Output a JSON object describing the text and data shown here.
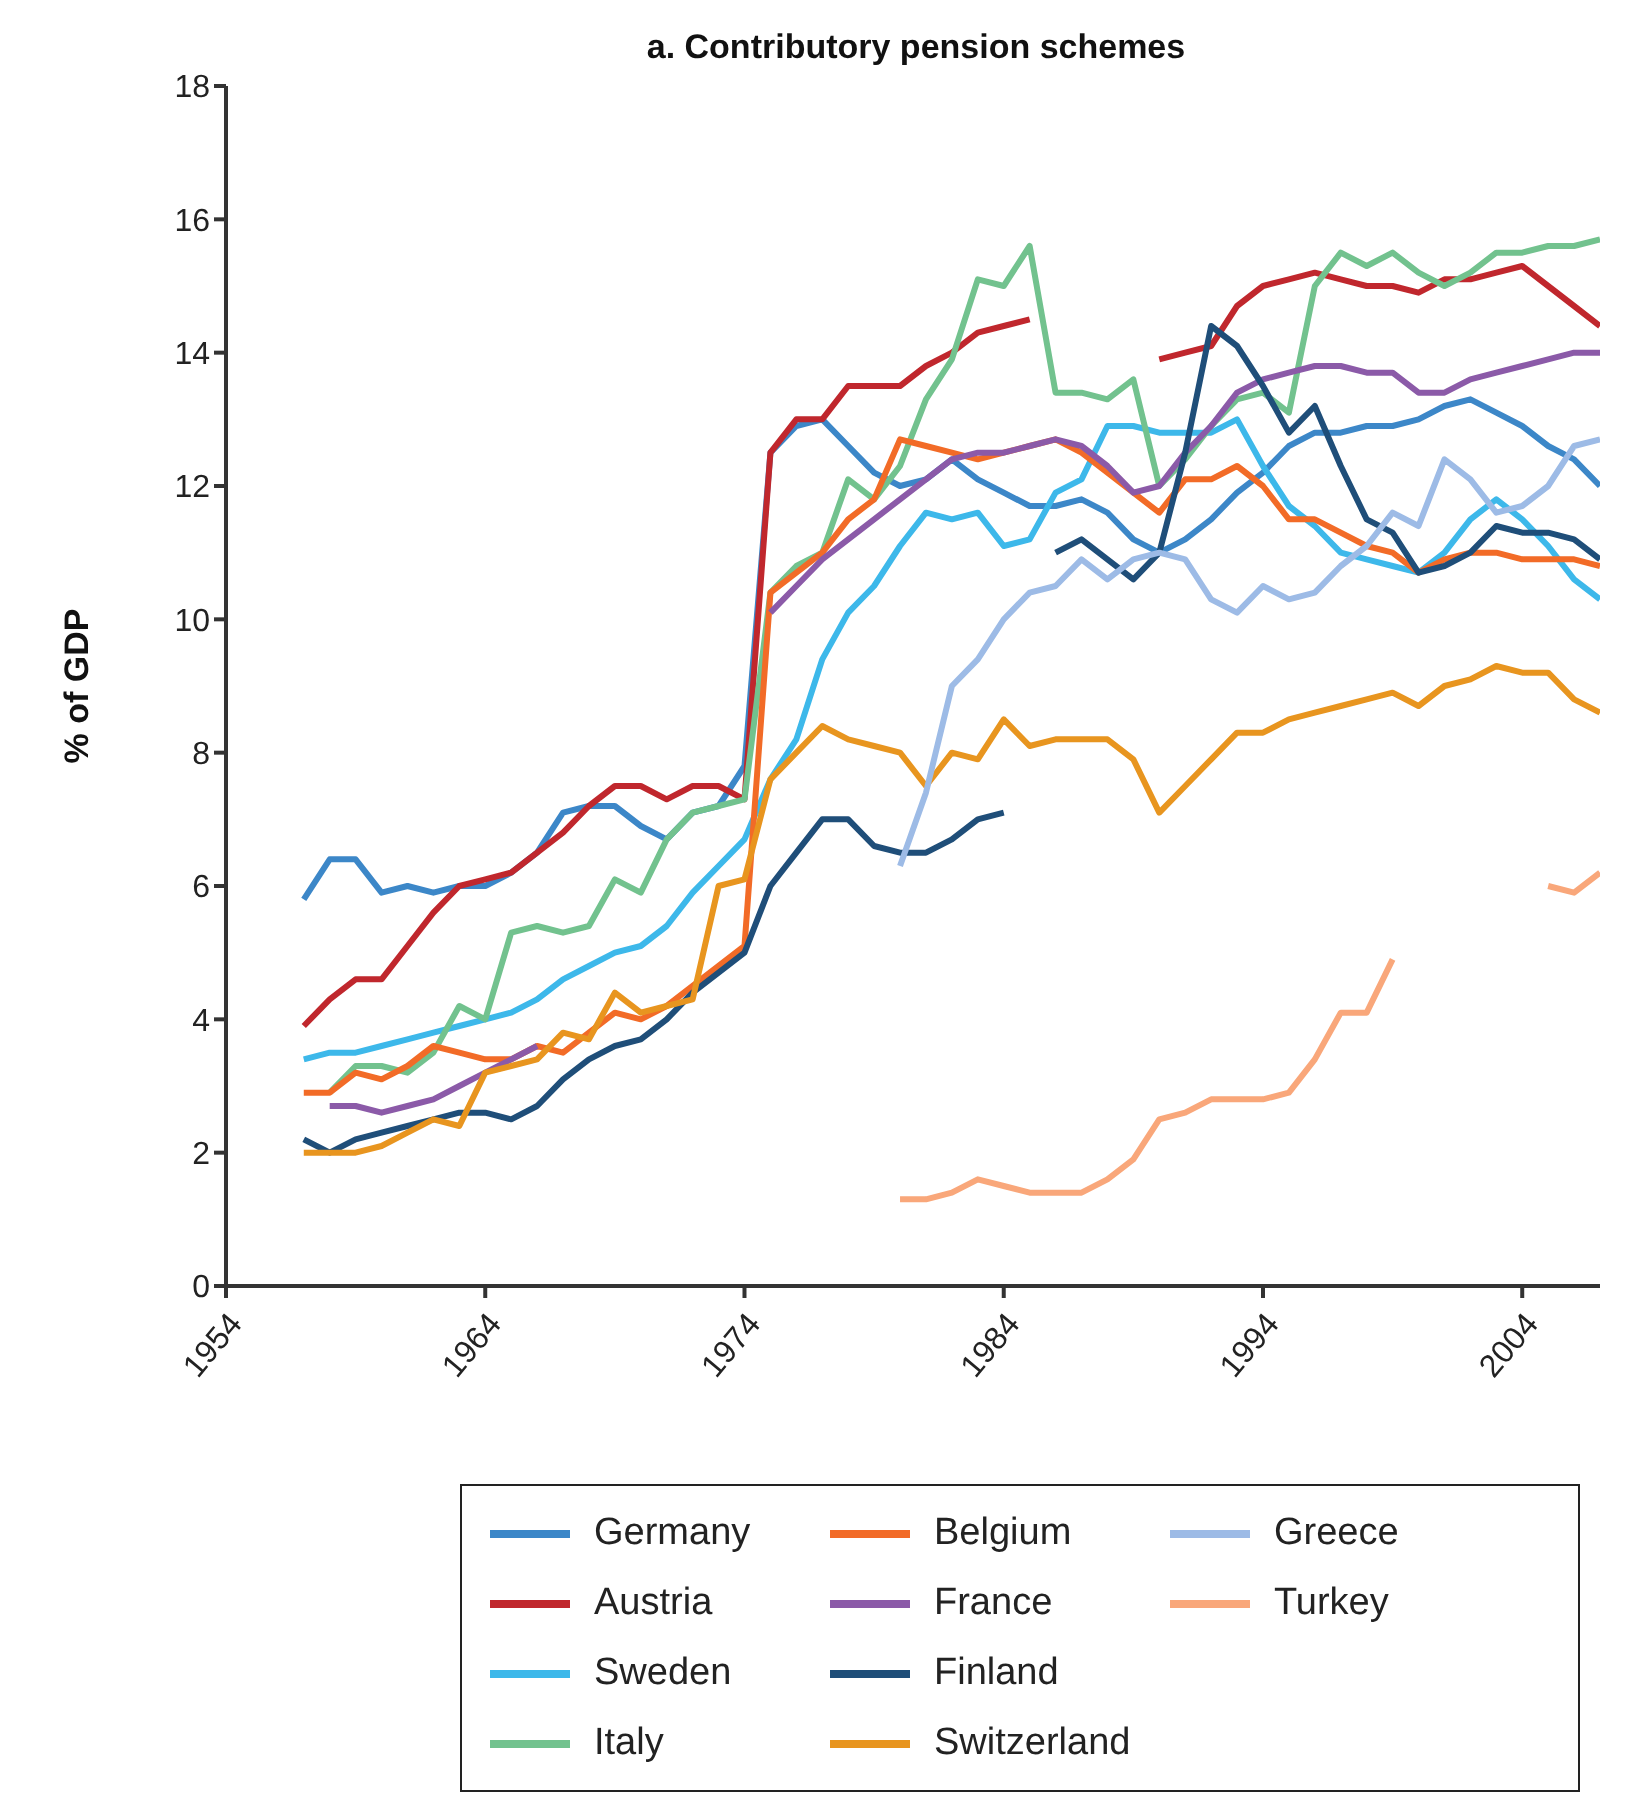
{
  "chart_data": {
    "type": "line",
    "title": "a. Contributory pension schemes",
    "ylabel": "% of GDP",
    "xlim": [
      1954,
      2007
    ],
    "xticks": [
      1954,
      1964,
      1974,
      1984,
      1994,
      2004
    ],
    "ylim": [
      0,
      18
    ],
    "yticks": [
      0,
      2,
      4,
      6,
      8,
      10,
      12,
      14,
      16,
      18
    ],
    "grid": false,
    "legend": "bottom",
    "marker": "none",
    "line_style": "solid",
    "series": [
      {
        "name": "Germany",
        "color": "#3c87c8",
        "x": [
          1957,
          1958,
          1959,
          1960,
          1961,
          1962,
          1963,
          1964,
          1965,
          1966,
          1967,
          1968,
          1969,
          1970,
          1971,
          1972,
          1973,
          1974,
          1975,
          1976,
          1977,
          1978,
          1979,
          1980,
          1981,
          1982,
          1983,
          1984,
          1985,
          1986,
          1987,
          1988,
          1989,
          1990,
          1991,
          1992,
          1993,
          1994,
          1995,
          1996,
          1997,
          1998,
          1999,
          2000,
          2001,
          2002,
          2003,
          2004,
          2005,
          2006,
          2007
        ],
        "values": [
          5.8,
          6.4,
          6.4,
          5.9,
          6.0,
          5.9,
          6.0,
          6.0,
          6.2,
          6.5,
          7.1,
          7.2,
          7.2,
          6.9,
          6.7,
          7.1,
          7.2,
          7.8,
          12.5,
          12.9,
          13.0,
          12.6,
          12.2,
          12.0,
          12.1,
          12.4,
          12.1,
          11.9,
          11.7,
          11.7,
          11.8,
          11.6,
          11.2,
          11.0,
          11.2,
          11.5,
          11.9,
          12.2,
          12.6,
          12.8,
          12.8,
          12.9,
          12.9,
          13.0,
          13.2,
          13.3,
          13.1,
          12.9,
          12.6,
          12.4,
          12.0
        ]
      },
      {
        "name": "Austria",
        "color": "#c0272d",
        "x": [
          1957,
          1958,
          1959,
          1960,
          1961,
          1962,
          1963,
          1964,
          1965,
          1966,
          1967,
          1968,
          1969,
          1970,
          1971,
          1972,
          1973,
          1974,
          1975,
          1976,
          1977,
          1978,
          1979,
          1980,
          1981,
          1982,
          1983,
          1984,
          1985,
          1987,
          1990,
          1991,
          1992,
          1993,
          1994,
          1995,
          1996,
          1997,
          1998,
          1999,
          2000,
          2001,
          2002,
          2003,
          2004,
          2005,
          2006,
          2007
        ],
        "values": [
          3.9,
          4.3,
          4.6,
          4.6,
          5.1,
          5.6,
          6.0,
          6.1,
          6.2,
          6.5,
          6.8,
          7.2,
          7.5,
          7.5,
          7.3,
          7.5,
          7.5,
          7.3,
          12.5,
          13.0,
          13.0,
          13.5,
          13.5,
          13.5,
          13.8,
          14.0,
          14.3,
          14.4,
          14.5,
          null,
          13.9,
          14.0,
          14.1,
          14.7,
          15.0,
          15.1,
          15.2,
          15.1,
          15.0,
          15.0,
          14.9,
          15.1,
          15.1,
          15.2,
          15.3,
          15.0,
          14.7,
          14.4
        ]
      },
      {
        "name": "Sweden",
        "color": "#3db8ea",
        "x": [
          1957,
          1958,
          1959,
          1960,
          1961,
          1962,
          1963,
          1964,
          1965,
          1966,
          1967,
          1968,
          1969,
          1970,
          1971,
          1972,
          1973,
          1974,
          1975,
          1976,
          1977,
          1978,
          1979,
          1980,
          1981,
          1982,
          1983,
          1984,
          1985,
          1986,
          1987,
          1988,
          1989,
          1990,
          1991,
          1992,
          1993,
          1994,
          1995,
          1996,
          1997,
          1998,
          1999,
          2000,
          2001,
          2002,
          2003,
          2004,
          2005,
          2006,
          2007
        ],
        "values": [
          3.4,
          3.5,
          3.5,
          3.6,
          3.7,
          3.8,
          3.9,
          4.0,
          4.1,
          4.3,
          4.6,
          4.8,
          5.0,
          5.1,
          5.4,
          5.9,
          6.3,
          6.7,
          7.6,
          8.2,
          9.4,
          10.1,
          10.5,
          11.1,
          11.6,
          11.5,
          11.6,
          11.1,
          11.2,
          11.9,
          12.1,
          12.9,
          12.9,
          12.8,
          12.8,
          12.8,
          13.0,
          12.3,
          11.7,
          11.4,
          11.0,
          10.9,
          10.8,
          10.7,
          11.0,
          11.5,
          11.8,
          11.5,
          11.1,
          10.6,
          10.3
        ]
      },
      {
        "name": "Italy",
        "color": "#72c28e",
        "x": [
          1958,
          1959,
          1960,
          1961,
          1962,
          1963,
          1964,
          1965,
          1966,
          1967,
          1968,
          1969,
          1970,
          1971,
          1972,
          1973,
          1974,
          1975,
          1976,
          1977,
          1978,
          1979,
          1980,
          1981,
          1982,
          1983,
          1984,
          1985,
          1986,
          1987,
          1988,
          1989,
          1990,
          1991,
          1992,
          1993,
          1994,
          1995,
          1996,
          1997,
          1998,
          1999,
          2000,
          2001,
          2002,
          2003,
          2004,
          2005,
          2006,
          2007
        ],
        "values": [
          2.9,
          3.3,
          3.3,
          3.2,
          3.5,
          4.2,
          4.0,
          5.3,
          5.4,
          5.3,
          5.4,
          6.1,
          5.9,
          6.7,
          7.1,
          7.2,
          7.3,
          10.4,
          10.8,
          11.0,
          12.1,
          11.8,
          12.3,
          13.3,
          13.9,
          15.1,
          15.0,
          15.6,
          13.4,
          13.4,
          13.3,
          13.6,
          12.0,
          12.4,
          12.9,
          13.3,
          13.4,
          13.1,
          15.0,
          15.5,
          15.3,
          15.5,
          15.2,
          15.0,
          15.2,
          15.5,
          15.5,
          15.6,
          15.6,
          15.7
        ]
      },
      {
        "name": "Belgium",
        "color": "#f26b27",
        "x": [
          1957,
          1958,
          1959,
          1960,
          1961,
          1962,
          1963,
          1964,
          1965,
          1966,
          1967,
          1968,
          1969,
          1970,
          1971,
          1972,
          1973,
          1974,
          1975,
          1976,
          1977,
          1978,
          1979,
          1980,
          1981,
          1982,
          1983,
          1984,
          1985,
          1986,
          1987,
          1988,
          1989,
          1990,
          1991,
          1992,
          1993,
          1994,
          1995,
          1996,
          1997,
          1998,
          1999,
          2000,
          2001,
          2002,
          2003,
          2004,
          2005,
          2006,
          2007
        ],
        "values": [
          2.9,
          2.9,
          3.2,
          3.1,
          3.3,
          3.6,
          3.5,
          3.4,
          3.4,
          3.6,
          3.5,
          3.8,
          4.1,
          4.0,
          4.2,
          4.5,
          4.8,
          5.1,
          10.4,
          10.7,
          11.0,
          11.5,
          11.8,
          12.7,
          12.6,
          12.5,
          12.4,
          12.5,
          12.6,
          12.7,
          12.5,
          12.2,
          11.9,
          11.6,
          12.1,
          12.1,
          12.3,
          12.0,
          11.5,
          11.5,
          11.3,
          11.1,
          11.0,
          10.7,
          10.9,
          11.0,
          11.0,
          10.9,
          10.9,
          10.9,
          10.8
        ]
      },
      {
        "name": "France",
        "color": "#8b5aa8",
        "x": [
          1958,
          1959,
          1960,
          1961,
          1962,
          1963,
          1964,
          1965,
          1966,
          1970,
          1975,
          1976,
          1977,
          1978,
          1979,
          1980,
          1981,
          1982,
          1983,
          1984,
          1985,
          1986,
          1987,
          1988,
          1989,
          1990,
          1991,
          1992,
          1993,
          1994,
          1995,
          1996,
          1997,
          1998,
          1999,
          2000,
          2001,
          2002,
          2003,
          2004,
          2005,
          2006,
          2007
        ],
        "values": [
          2.7,
          2.7,
          2.6,
          2.7,
          2.8,
          3.0,
          3.2,
          3.4,
          3.6,
          null,
          10.1,
          10.5,
          10.9,
          11.2,
          11.5,
          11.8,
          12.1,
          12.4,
          12.5,
          12.5,
          12.6,
          12.7,
          12.6,
          12.3,
          11.9,
          12.0,
          12.5,
          12.9,
          13.4,
          13.6,
          13.7,
          13.8,
          13.8,
          13.7,
          13.7,
          13.4,
          13.4,
          13.6,
          13.7,
          13.8,
          13.9,
          14.0,
          14.0
        ]
      },
      {
        "name": "Finland",
        "color": "#1f4e79",
        "x": [
          1957,
          1958,
          1959,
          1960,
          1961,
          1962,
          1963,
          1964,
          1965,
          1966,
          1967,
          1968,
          1969,
          1970,
          1971,
          1972,
          1973,
          1974,
          1975,
          1976,
          1977,
          1978,
          1979,
          1980,
          1981,
          1982,
          1983,
          1984,
          1985,
          1986,
          1987,
          1988,
          1989,
          1990,
          1991,
          1992,
          1993,
          1994,
          1995,
          1996,
          1997,
          1998,
          1999,
          2000,
          2001,
          2002,
          2003,
          2004,
          2005,
          2006,
          2007
        ],
        "values": [
          2.2,
          2.0,
          2.2,
          2.3,
          2.4,
          2.5,
          2.6,
          2.6,
          2.5,
          2.7,
          3.1,
          3.4,
          3.6,
          3.7,
          4.0,
          4.4,
          4.7,
          5.0,
          6.0,
          6.5,
          7.0,
          7.0,
          6.6,
          6.5,
          6.5,
          6.7,
          7.0,
          7.1,
          null,
          11.0,
          11.2,
          10.9,
          10.6,
          11.0,
          12.5,
          14.4,
          14.1,
          13.5,
          12.8,
          13.2,
          12.3,
          11.5,
          11.3,
          10.7,
          10.8,
          11.0,
          11.4,
          11.3,
          11.3,
          11.2,
          10.9
        ]
      },
      {
        "name": "Switzerland",
        "color": "#e8951f",
        "x": [
          1957,
          1958,
          1959,
          1960,
          1961,
          1962,
          1963,
          1964,
          1965,
          1966,
          1967,
          1968,
          1969,
          1970,
          1971,
          1972,
          1973,
          1974,
          1975,
          1976,
          1977,
          1978,
          1979,
          1980,
          1981,
          1982,
          1983,
          1984,
          1985,
          1986,
          1987,
          1988,
          1989,
          1990,
          1991,
          1992,
          1993,
          1994,
          1995,
          1996,
          1997,
          1998,
          1999,
          2000,
          2001,
          2002,
          2003,
          2004,
          2005,
          2006,
          2007
        ],
        "values": [
          2.0,
          2.0,
          2.0,
          2.1,
          2.3,
          2.5,
          2.4,
          3.2,
          3.3,
          3.4,
          3.8,
          3.7,
          4.4,
          4.1,
          4.2,
          4.3,
          6.0,
          6.1,
          7.6,
          8.0,
          8.4,
          8.2,
          8.1,
          8.0,
          7.5,
          8.0,
          7.9,
          8.5,
          8.1,
          8.2,
          8.2,
          8.2,
          7.9,
          7.1,
          7.5,
          7.9,
          8.3,
          8.3,
          8.5,
          8.6,
          8.7,
          8.8,
          8.9,
          8.7,
          9.0,
          9.1,
          9.3,
          9.2,
          9.2,
          8.8,
          8.6
        ]
      },
      {
        "name": "Greece",
        "color": "#9dbbe6",
        "x": [
          1980,
          1981,
          1982,
          1983,
          1984,
          1985,
          1986,
          1987,
          1988,
          1989,
          1990,
          1991,
          1992,
          1993,
          1994,
          1995,
          1996,
          1997,
          1998,
          1999,
          2000,
          2001,
          2002,
          2003,
          2004,
          2005,
          2006,
          2007
        ],
        "values": [
          6.3,
          7.4,
          9.0,
          9.4,
          10.0,
          10.4,
          10.5,
          10.9,
          10.6,
          10.9,
          11.0,
          10.9,
          10.3,
          10.1,
          10.5,
          10.3,
          10.4,
          10.8,
          11.1,
          11.6,
          11.4,
          12.4,
          12.1,
          11.6,
          11.7,
          12.0,
          12.6,
          12.7
        ]
      },
      {
        "name": "Turkey",
        "color": "#f9a77a",
        "x": [
          1980,
          1981,
          1982,
          1983,
          1984,
          1985,
          1986,
          1987,
          1988,
          1989,
          1990,
          1991,
          1992,
          1993,
          1994,
          1995,
          1996,
          1997,
          1998,
          1999,
          2002,
          2005,
          2006,
          2007
        ],
        "values": [
          1.3,
          1.3,
          1.4,
          1.6,
          1.5,
          1.4,
          1.4,
          1.4,
          1.6,
          1.9,
          2.5,
          2.6,
          2.8,
          2.8,
          2.8,
          2.9,
          3.4,
          4.1,
          4.1,
          4.9,
          null,
          6.0,
          5.9,
          6.2
        ]
      }
    ]
  }
}
